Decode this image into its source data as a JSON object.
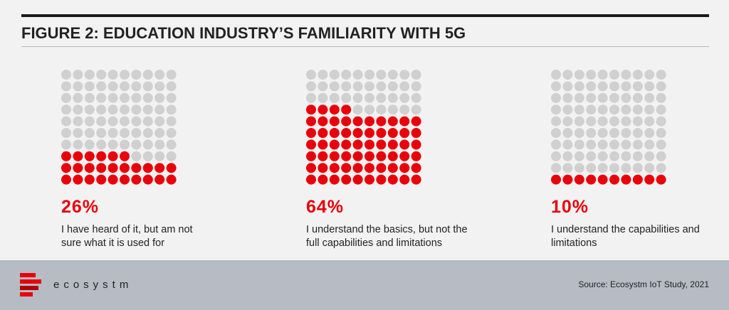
{
  "chart_data": {
    "type": "waffle",
    "title": "FIGURE 2: EDUCATION INDUSTRY’S FAMILIARITY WITH 5G",
    "categories": [
      "I have heard of it, but am not sure what it is used for",
      "I understand the basics, but not the full capabilities and limitations",
      "I understand the capabilities and limitations"
    ],
    "values": [
      26,
      64,
      10
    ],
    "value_labels": [
      "26%",
      "64%",
      "10%"
    ],
    "color": "#e8000b",
    "empty_color": "#d0d0d0"
  },
  "footer": {
    "brand": "ecosystm",
    "source": "Source: Ecosystm IoT Study, 2021"
  }
}
